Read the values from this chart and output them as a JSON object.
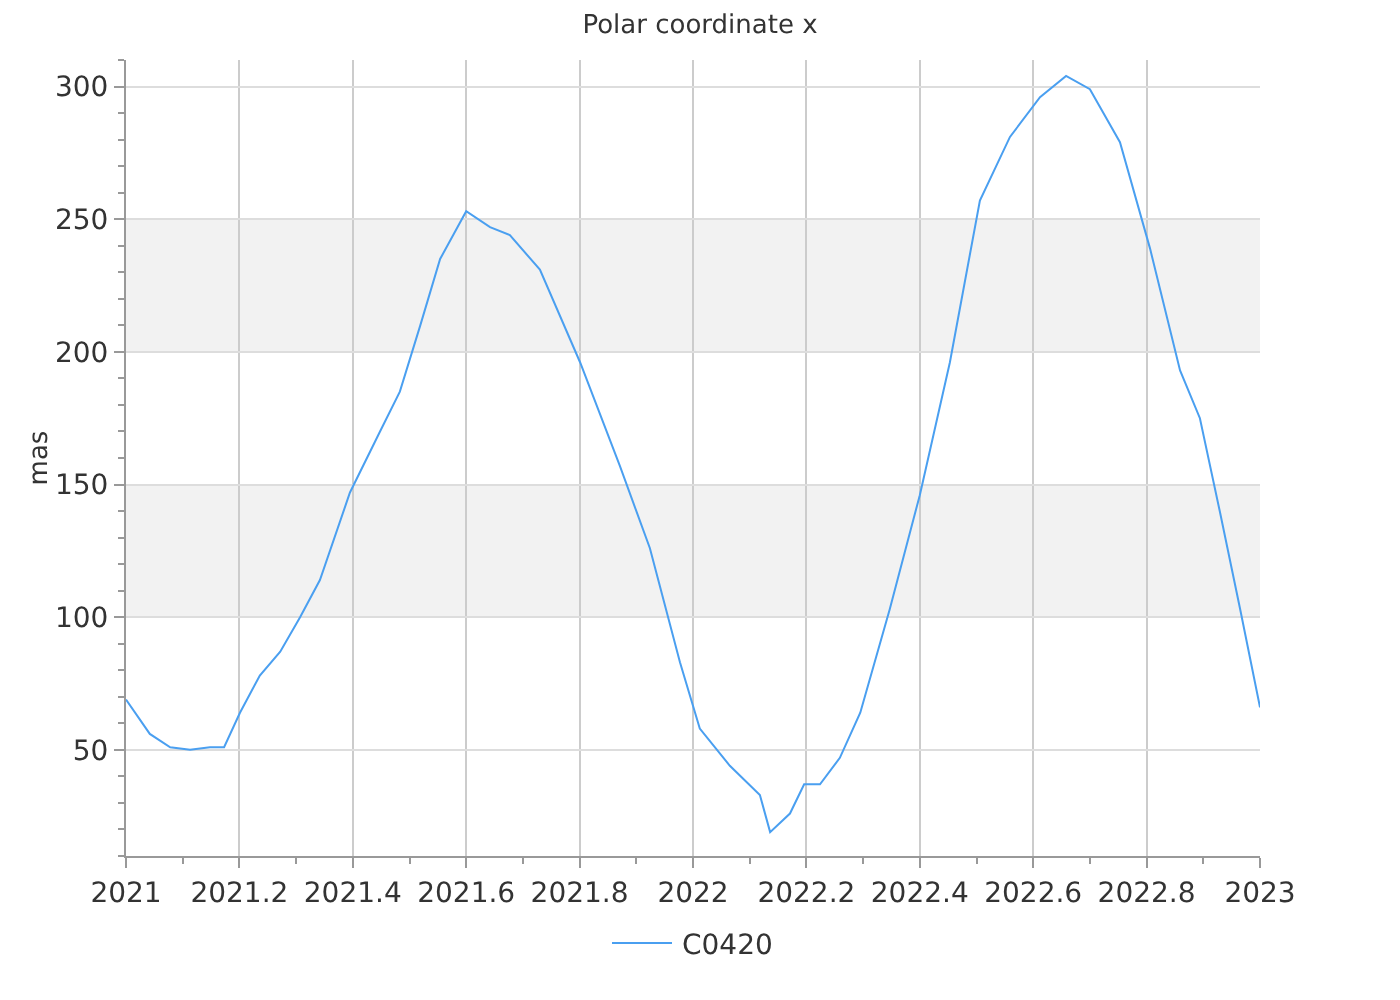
{
  "chart_data": {
    "type": "line",
    "title": "Polar coordinate x",
    "ylabel": "mas",
    "x": [
      2021.0,
      2021.042,
      2021.078,
      2021.113,
      2021.148,
      2021.173,
      2021.201,
      2021.236,
      2021.272,
      2021.307,
      2021.342,
      2021.395,
      2021.448,
      2021.483,
      2021.519,
      2021.554,
      2021.6,
      2021.642,
      2021.677,
      2021.73,
      2021.801,
      2021.871,
      2021.924,
      2021.977,
      2022.012,
      2022.065,
      2022.118,
      2022.136,
      2022.171,
      2022.196,
      2022.224,
      2022.259,
      2022.295,
      2022.347,
      2022.4,
      2022.453,
      2022.506,
      2022.559,
      2022.612,
      2022.658,
      2022.7,
      2022.753,
      2022.806,
      2022.859,
      2022.894,
      2022.929,
      2022.965,
      2023.0
    ],
    "series": [
      {
        "name": "C0420",
        "color": "#4a9ff0",
        "values": [
          69,
          56,
          51,
          50,
          51,
          51,
          64,
          78,
          87,
          100,
          114,
          147,
          170,
          185,
          210,
          235,
          253,
          247,
          244,
          231,
          196,
          157,
          126,
          83,
          58,
          44,
          33,
          19,
          26,
          37,
          37,
          47,
          64,
          103,
          146,
          196,
          257,
          281,
          296,
          304,
          299,
          279,
          239,
          193,
          175,
          140,
          103,
          66
        ]
      }
    ],
    "xlim": [
      2021,
      2023
    ],
    "xticks": [
      2021,
      2021.2,
      2021.4,
      2021.6,
      2021.8,
      2022,
      2022.2,
      2022.4,
      2022.6,
      2022.8,
      2023
    ],
    "ylim": [
      10,
      310
    ],
    "yticks": [
      50,
      100,
      150,
      200,
      250,
      300
    ],
    "bands": [
      {
        "axis": "y",
        "from": 100,
        "to": 150,
        "color": "#f2f2f2"
      },
      {
        "axis": "y",
        "from": 200,
        "to": 250,
        "color": "#f2f2f2"
      }
    ],
    "grid": true,
    "legend": "bottom",
    "marker": "none",
    "line_style": "solid"
  }
}
